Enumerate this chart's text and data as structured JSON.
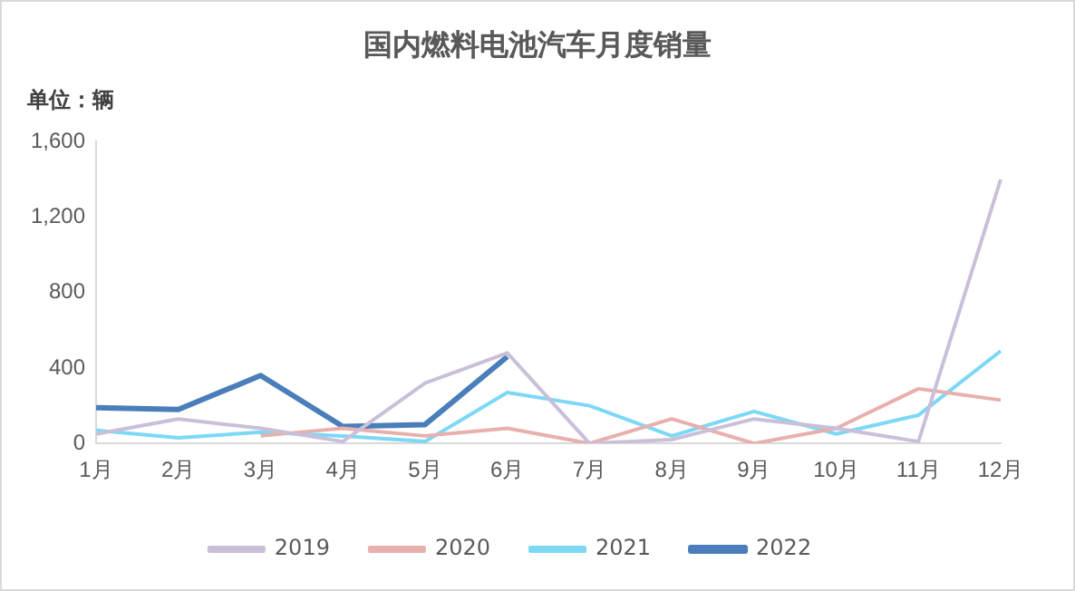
{
  "chart_data": {
    "type": "line",
    "title": "国内燃料电池汽车月度销量",
    "ylabel": "单位：辆",
    "categories": [
      "1月",
      "2月",
      "3月",
      "4月",
      "5月",
      "6月",
      "7月",
      "8月",
      "9月",
      "10月",
      "11月",
      "12月"
    ],
    "series": [
      {
        "name": "2019",
        "color": "#c9bfd9",
        "values": [
          50,
          130,
          80,
          10,
          320,
          480,
          0,
          20,
          130,
          80,
          10,
          1400
        ]
      },
      {
        "name": "2020",
        "color": "#e8b0ac",
        "values": [
          null,
          null,
          40,
          80,
          40,
          80,
          0,
          130,
          0,
          80,
          290,
          230
        ]
      },
      {
        "name": "2021",
        "color": "#7dd8f5",
        "values": [
          70,
          30,
          60,
          40,
          10,
          270,
          200,
          40,
          170,
          50,
          150,
          490
        ]
      },
      {
        "name": "2022",
        "color": "#4a7ebb",
        "values": [
          190,
          180,
          360,
          90,
          100,
          460,
          null,
          null,
          null,
          null,
          null,
          null
        ]
      }
    ],
    "ylim": [
      0,
      1600
    ],
    "yticks": [
      0,
      {
        "value": 400,
        "label": "400"
      },
      {
        "value": 800,
        "label": "800"
      },
      {
        "value": 1200,
        "label": "1,200"
      },
      {
        "value": 1600,
        "label": "1,600"
      }
    ],
    "grid": false,
    "legend": "bottom",
    "marker": "none",
    "line_style": "solid"
  }
}
